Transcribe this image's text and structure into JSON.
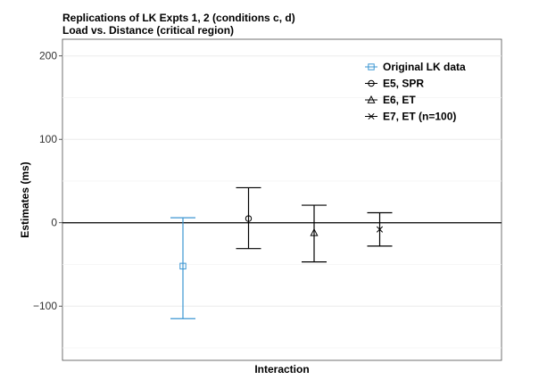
{
  "chart_data": {
    "type": "errorbar",
    "title_lines": [
      "Replications of LK Expts 1, 2 (conditions c, d)",
      "Load vs. Distance (critical region)"
    ],
    "xlabel": "Interaction",
    "ylabel": "Estimates (ms)",
    "ylim": [
      -165,
      220
    ],
    "yticks": [
      -100,
      0,
      100,
      200
    ],
    "yticklabels": [
      "−100",
      "0",
      "100",
      "200"
    ],
    "hline": 0,
    "grid": true,
    "legend_position": "top-right",
    "series": [
      {
        "name": "Original LK data",
        "marker": "square",
        "color": "#3b96d2",
        "estimate": -52,
        "lower": -115,
        "upper": 6
      },
      {
        "name": "E5, SPR",
        "marker": "circle",
        "color": "#000000",
        "estimate": 5,
        "lower": -31,
        "upper": 42
      },
      {
        "name": "E6, ET",
        "marker": "triangle",
        "color": "#000000",
        "estimate": -12,
        "lower": -47,
        "upper": 21
      },
      {
        "name": "E7, ET (n=100)",
        "marker": "cross",
        "color": "#000000",
        "estimate": -8,
        "lower": -28,
        "upper": 12
      }
    ]
  }
}
